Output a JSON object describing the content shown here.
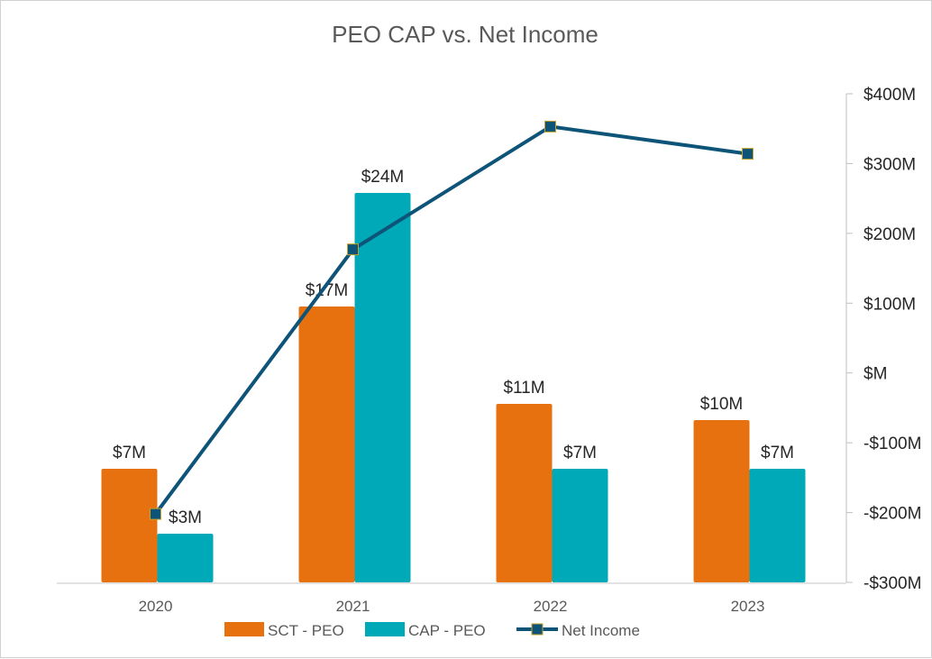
{
  "chart_data": {
    "type": "bar",
    "title": "PEO CAP vs. Net Income",
    "categories": [
      "2020",
      "2021",
      "2022",
      "2023"
    ],
    "series": [
      {
        "name": "SCT - PEO",
        "kind": "bar",
        "axis": "left",
        "color": "#E8710F",
        "values": [
          7,
          17,
          11,
          10
        ],
        "labels": [
          "$7M",
          "$17M",
          "$11M",
          "$10M"
        ]
      },
      {
        "name": "CAP - PEO",
        "kind": "bar",
        "axis": "left",
        "color": "#00A9B8",
        "values": [
          3,
          24,
          7,
          7
        ],
        "labels": [
          "$3M",
          "$24M",
          "$7M",
          "$7M"
        ]
      },
      {
        "name": "Net Income",
        "kind": "line",
        "axis": "right",
        "color": "#0D5478",
        "values": [
          -202,
          177,
          353,
          314
        ]
      }
    ],
    "ylim_left": [
      0,
      30
    ],
    "ylim_right": [
      -300,
      400
    ],
    "y_right_ticks": [
      {
        "value": 400,
        "label": "$400M"
      },
      {
        "value": 300,
        "label": "$300M"
      },
      {
        "value": 200,
        "label": "$200M"
      },
      {
        "value": 100,
        "label": "$100M"
      },
      {
        "value": 0,
        "label": "$M"
      },
      {
        "value": -100,
        "label": "-$100M"
      },
      {
        "value": -200,
        "label": "-$200M"
      },
      {
        "value": -300,
        "label": "-$300M"
      }
    ],
    "legend_position": "bottom",
    "grid": false
  }
}
